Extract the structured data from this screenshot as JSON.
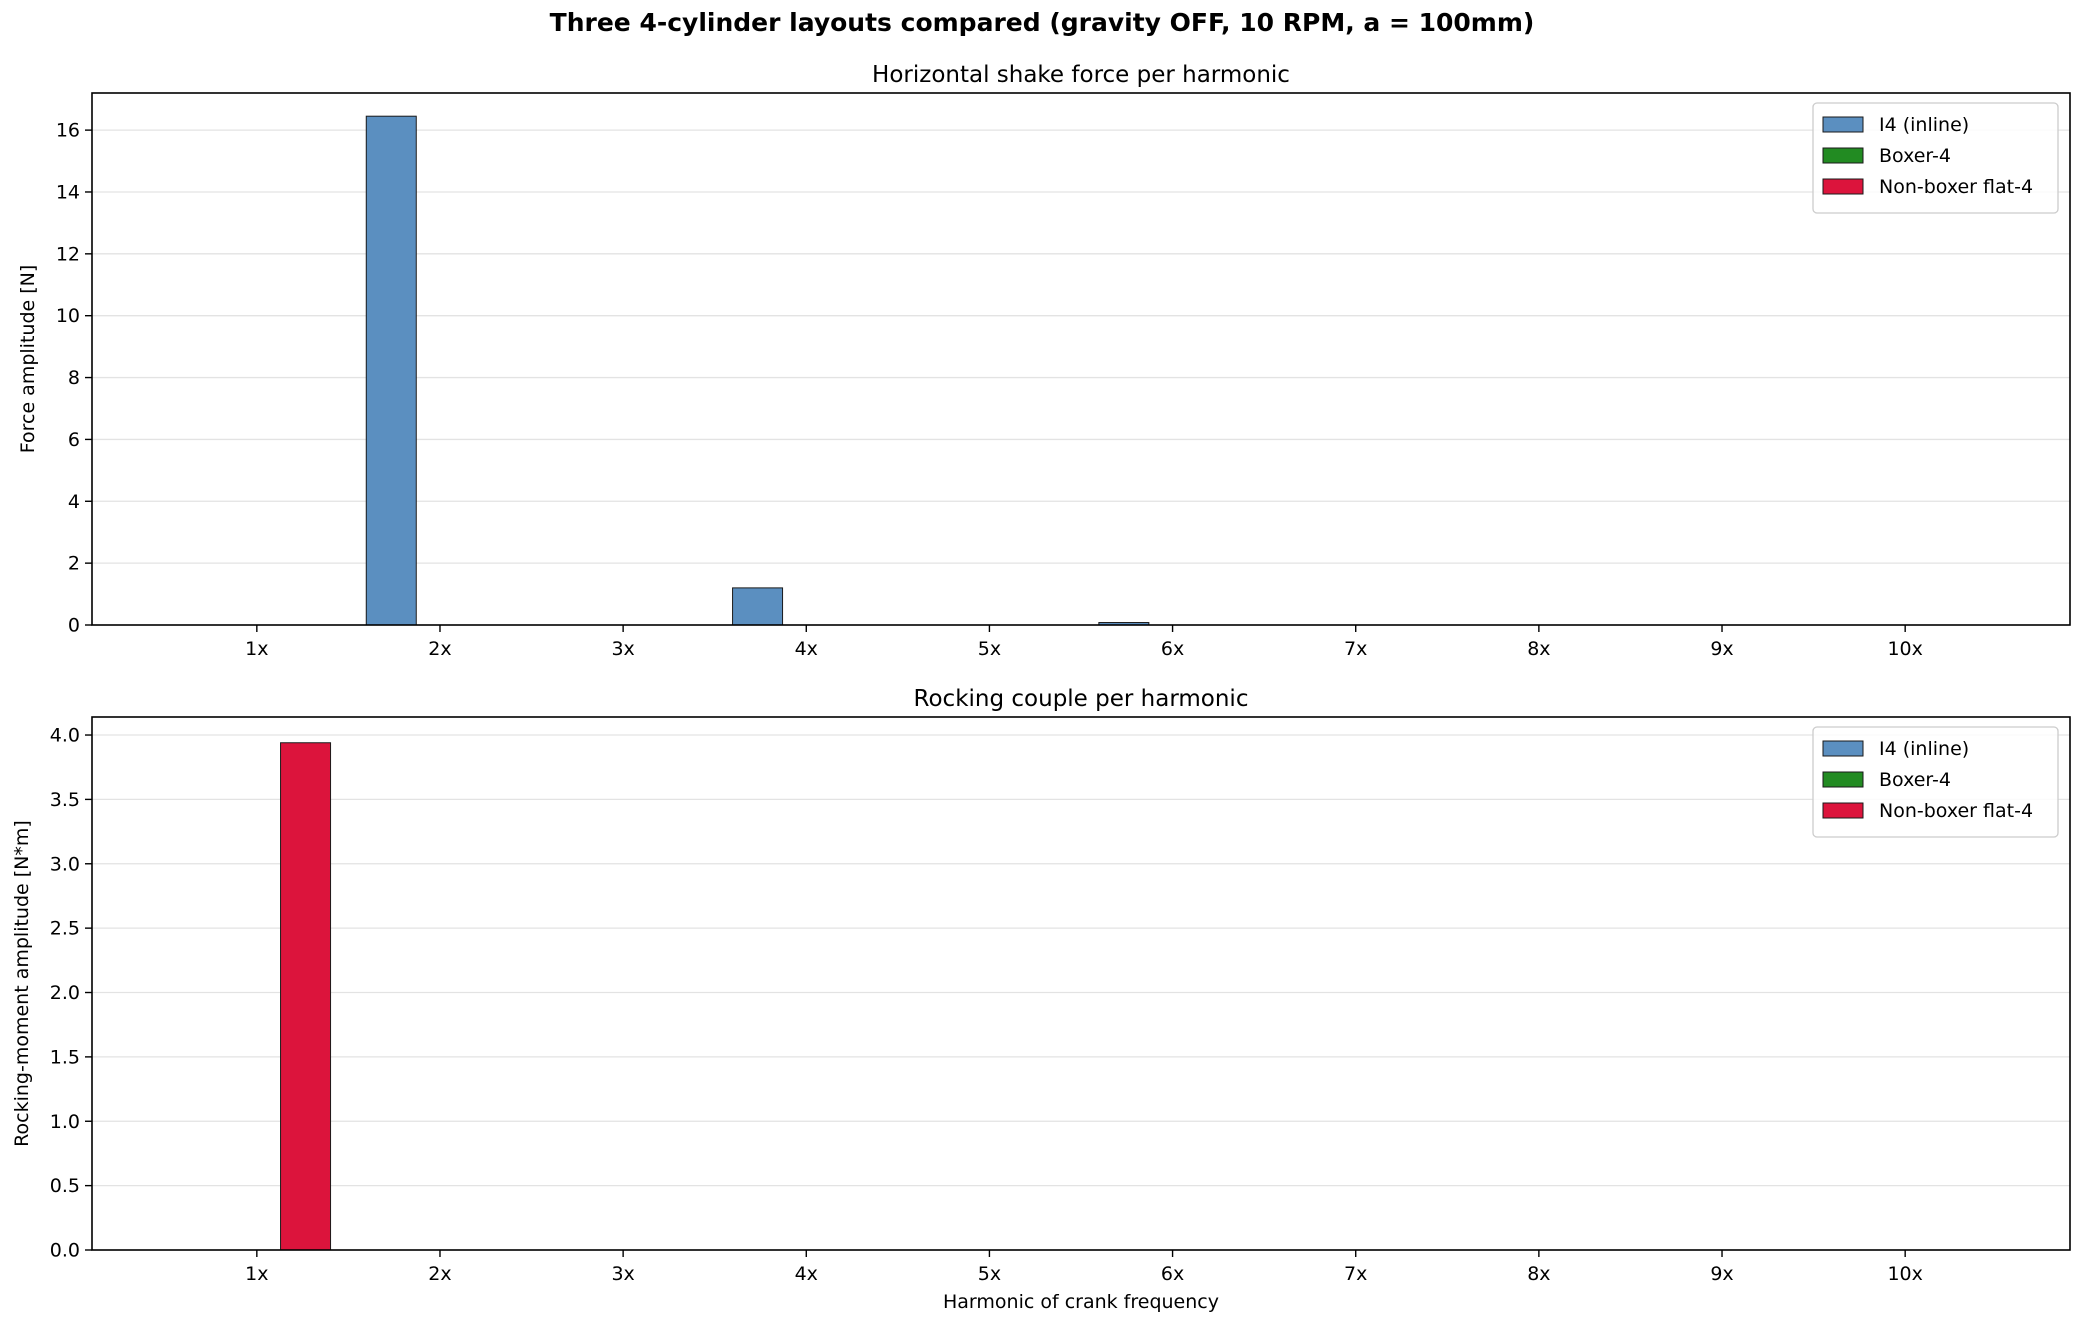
{
  "figure": {
    "suptitle": "Three 4-cylinder layouts compared (gravity OFF, 10 RPM, a = 100mm)"
  },
  "chart_data": [
    {
      "type": "bar",
      "title": "Horizontal shake force per harmonic",
      "xlabel": "",
      "ylabel": "Force amplitude [N]",
      "categories": [
        "1x",
        "2x",
        "3x",
        "4x",
        "5x",
        "6x",
        "7x",
        "8x",
        "9x",
        "10x"
      ],
      "ylim": [
        0,
        17.2
      ],
      "yticks": [
        0,
        2,
        4,
        6,
        8,
        10,
        12,
        14,
        16
      ],
      "ytick_labels": [
        "0",
        "2",
        "4",
        "6",
        "8",
        "10",
        "12",
        "14",
        "16"
      ],
      "grid": "y",
      "legend_position": "top-right",
      "series": [
        {
          "name": "I4 (inline)",
          "color": "#5b8fc0",
          "values": [
            0,
            16.45,
            0,
            1.2,
            0,
            0.08,
            0,
            0,
            0,
            0
          ]
        },
        {
          "name": "Boxer-4",
          "color": "#228b22",
          "values": [
            0,
            0,
            0,
            0,
            0,
            0,
            0,
            0,
            0,
            0
          ]
        },
        {
          "name": "Non-boxer flat-4",
          "color": "#dc143c",
          "values": [
            0,
            0,
            0,
            0,
            0,
            0,
            0,
            0,
            0,
            0
          ]
        }
      ]
    },
    {
      "type": "bar",
      "title": "Rocking couple per harmonic",
      "xlabel": "Harmonic of crank frequency",
      "ylabel": "Rocking-moment amplitude [N*m]",
      "categories": [
        "1x",
        "2x",
        "3x",
        "4x",
        "5x",
        "6x",
        "7x",
        "8x",
        "9x",
        "10x"
      ],
      "ylim": [
        0,
        4.14
      ],
      "yticks": [
        0,
        0.5,
        1,
        1.5,
        2,
        2.5,
        3,
        3.5,
        4
      ],
      "ytick_labels": [
        "0.0",
        "0.5",
        "1.0",
        "1.5",
        "2.0",
        "2.5",
        "3.0",
        "3.5",
        "4.0"
      ],
      "grid": "y",
      "legend_position": "top-right",
      "series": [
        {
          "name": "I4 (inline)",
          "color": "#5b8fc0",
          "values": [
            0,
            0,
            0,
            0,
            0,
            0,
            0,
            0,
            0,
            0
          ]
        },
        {
          "name": "Boxer-4",
          "color": "#228b22",
          "values": [
            0,
            0,
            0,
            0,
            0,
            0,
            0,
            0,
            0,
            0
          ]
        },
        {
          "name": "Non-boxer flat-4",
          "color": "#dc143c",
          "values": [
            3.94,
            0,
            0,
            0,
            0,
            0,
            0,
            0,
            0,
            0
          ]
        }
      ]
    }
  ]
}
